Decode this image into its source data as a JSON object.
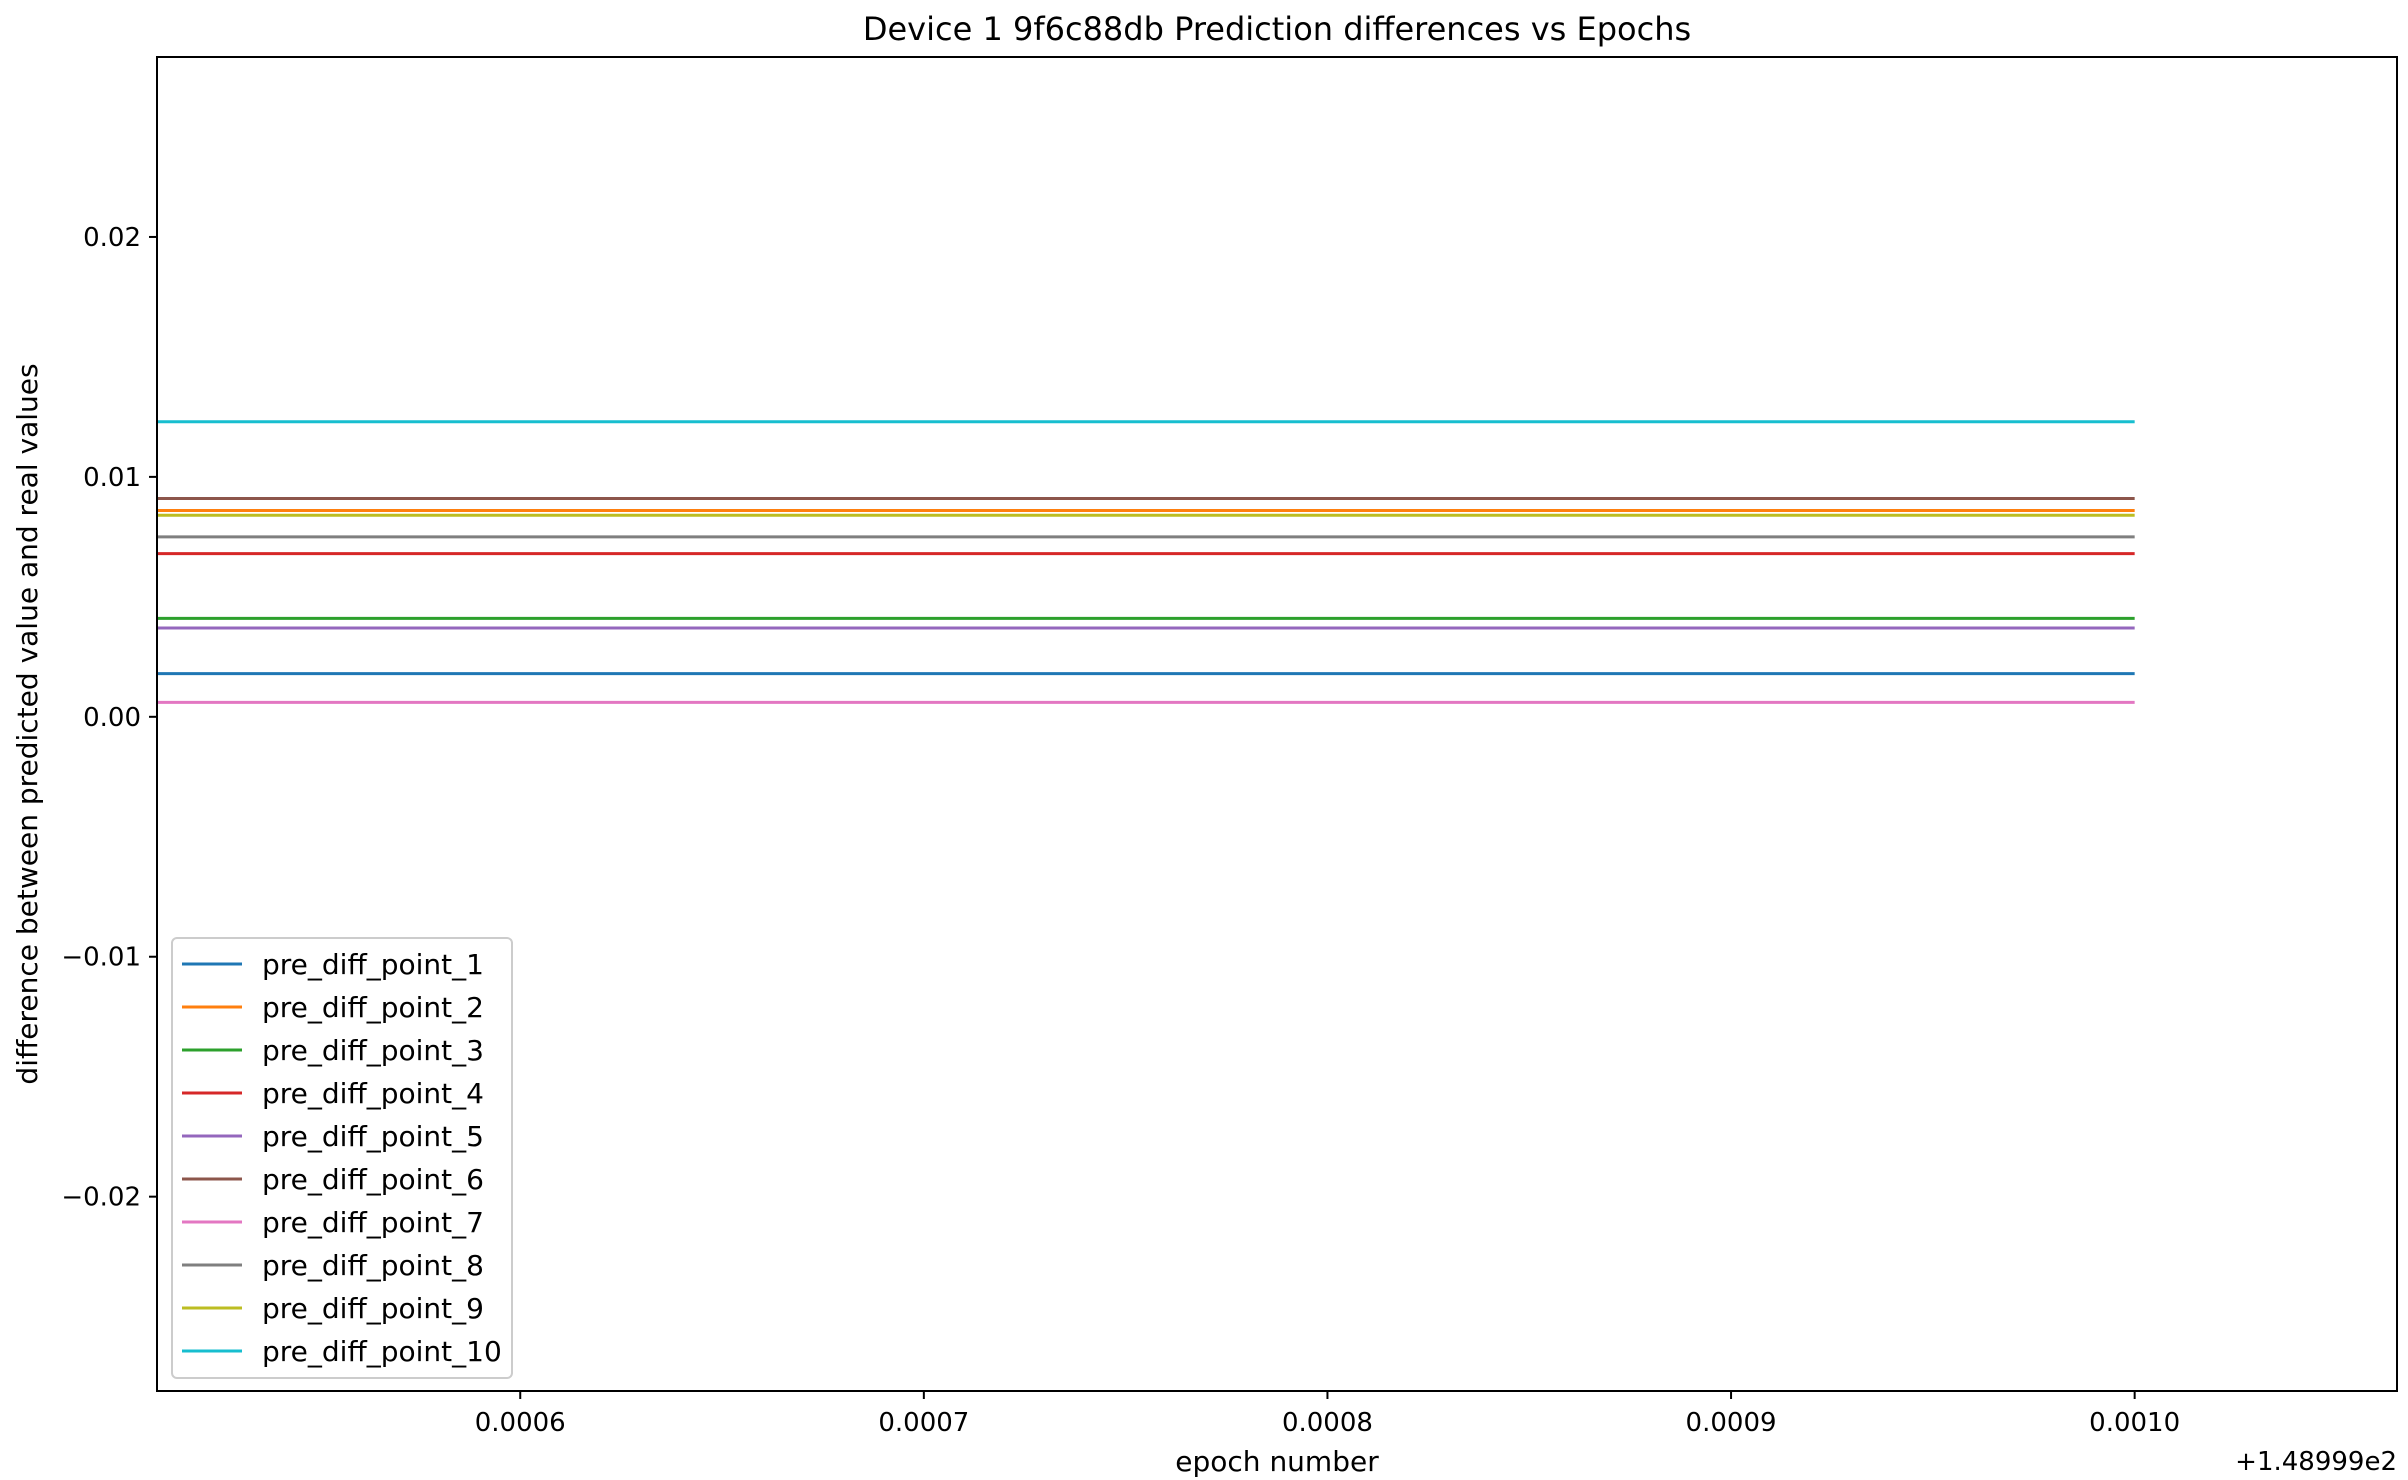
{
  "chart_data": {
    "type": "line",
    "title": "Device 1 9f6c88db Prediction differences vs Epochs",
    "xlabel": "epoch number",
    "ylabel": "difference between predicted value and real values",
    "x_offset_label": "+1.48999e2",
    "xlim": [
      0.00051,
      0.001065
    ],
    "ylim": [
      -0.0281,
      0.0275
    ],
    "xticks": [
      {
        "value": 0.0006,
        "label": "0.0006"
      },
      {
        "value": 0.0007,
        "label": "0.0007"
      },
      {
        "value": 0.0008,
        "label": "0.0008"
      },
      {
        "value": 0.0009,
        "label": "0.0009"
      },
      {
        "value": 0.001,
        "label": "0.0010"
      }
    ],
    "yticks": [
      {
        "value": -0.02,
        "label": "−0.02"
      },
      {
        "value": -0.01,
        "label": "−0.01"
      },
      {
        "value": 0.0,
        "label": "0.00"
      },
      {
        "value": 0.01,
        "label": "0.01"
      },
      {
        "value": 0.02,
        "label": "0.02"
      }
    ],
    "x": [
      0.00051,
      0.001
    ],
    "grid": false,
    "legend_position": "lower-left",
    "series": [
      {
        "name": "pre_diff_point_1",
        "color": "#1f77b4",
        "values": [
          0.0018,
          0.0018
        ]
      },
      {
        "name": "pre_diff_point_2",
        "color": "#ff7f0e",
        "values": [
          0.0086,
          0.0086
        ]
      },
      {
        "name": "pre_diff_point_3",
        "color": "#2ca02c",
        "values": [
          0.0041,
          0.0041
        ]
      },
      {
        "name": "pre_diff_point_4",
        "color": "#d62728",
        "values": [
          0.0068,
          0.0068
        ]
      },
      {
        "name": "pre_diff_point_5",
        "color": "#9467bd",
        "values": [
          0.0037,
          0.0037
        ]
      },
      {
        "name": "pre_diff_point_6",
        "color": "#8c564b",
        "values": [
          0.0091,
          0.0091
        ]
      },
      {
        "name": "pre_diff_point_7",
        "color": "#e377c2",
        "values": [
          0.0006,
          0.0006
        ]
      },
      {
        "name": "pre_diff_point_8",
        "color": "#7f7f7f",
        "values": [
          0.0075,
          0.0075
        ]
      },
      {
        "name": "pre_diff_point_9",
        "color": "#bcbd22",
        "values": [
          0.0084,
          0.0084
        ]
      },
      {
        "name": "pre_diff_point_10",
        "color": "#17becf",
        "values": [
          0.0123,
          0.0123
        ]
      }
    ]
  }
}
